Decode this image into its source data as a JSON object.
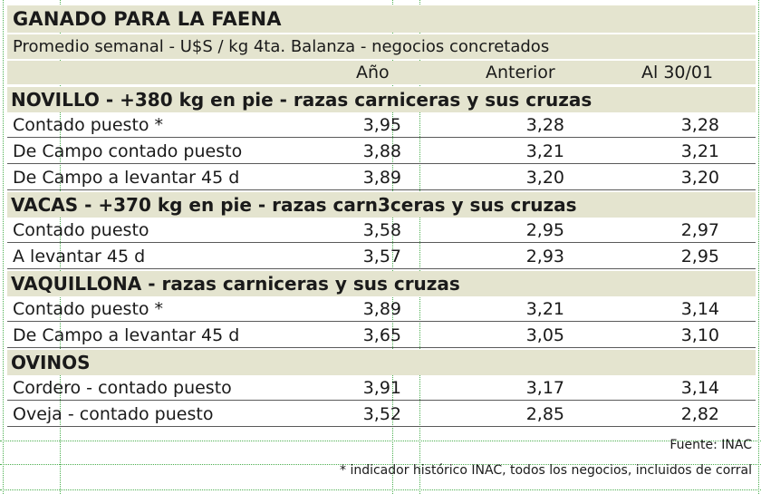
{
  "title": "GANADO PARA LA FAENA",
  "subtitle": "Promedio semanal - U$S / kg 4ta. Balanza - negocios concretados",
  "columns": [
    "Año",
    "Anterior",
    "Al 30/01"
  ],
  "sections": [
    {
      "name": "NOVILLO - +380 kg en pie - razas carniceras y sus cruzas",
      "rows": [
        {
          "label": "Contado puesto *",
          "values": [
            "3,95",
            "3,28",
            "3,28"
          ]
        },
        {
          "label": "De Campo contado puesto",
          "values": [
            "3,88",
            "3,21",
            "3,21"
          ]
        },
        {
          "label": "De Campo a levantar 45 d",
          "values": [
            "3,89",
            "3,20",
            "3,20"
          ]
        }
      ]
    },
    {
      "name": "VACAS - +370 kg en pie - razas carn3ceras y sus cruzas",
      "rows": [
        {
          "label": "Contado puesto",
          "values": [
            "3,58",
            "2,95",
            "2,97"
          ]
        },
        {
          "label": "A levantar 45 d",
          "values": [
            "3,57",
            "2,93",
            "2,95"
          ]
        }
      ]
    },
    {
      "name": "VAQUILLONA - razas carniceras y sus cruzas",
      "rows": [
        {
          "label": "Contado puesto *",
          "values": [
            "3,89",
            "3,21",
            "3,14"
          ]
        },
        {
          "label": "De Campo a levantar 45 d",
          "values": [
            "3,65",
            "3,05",
            "3,10"
          ]
        }
      ]
    },
    {
      "name": "OVINOS",
      "rows": [
        {
          "label": "Cordero - contado puesto",
          "values": [
            "3,91",
            "3,17",
            "3,14"
          ]
        },
        {
          "label": "Oveja - contado puesto",
          "values": [
            "3,52",
            "2,85",
            "2,82"
          ]
        }
      ]
    }
  ],
  "source": "Fuente: INAC",
  "footnote": "* indicador histórico INAC, todos los negocios, incluidos de corral"
}
